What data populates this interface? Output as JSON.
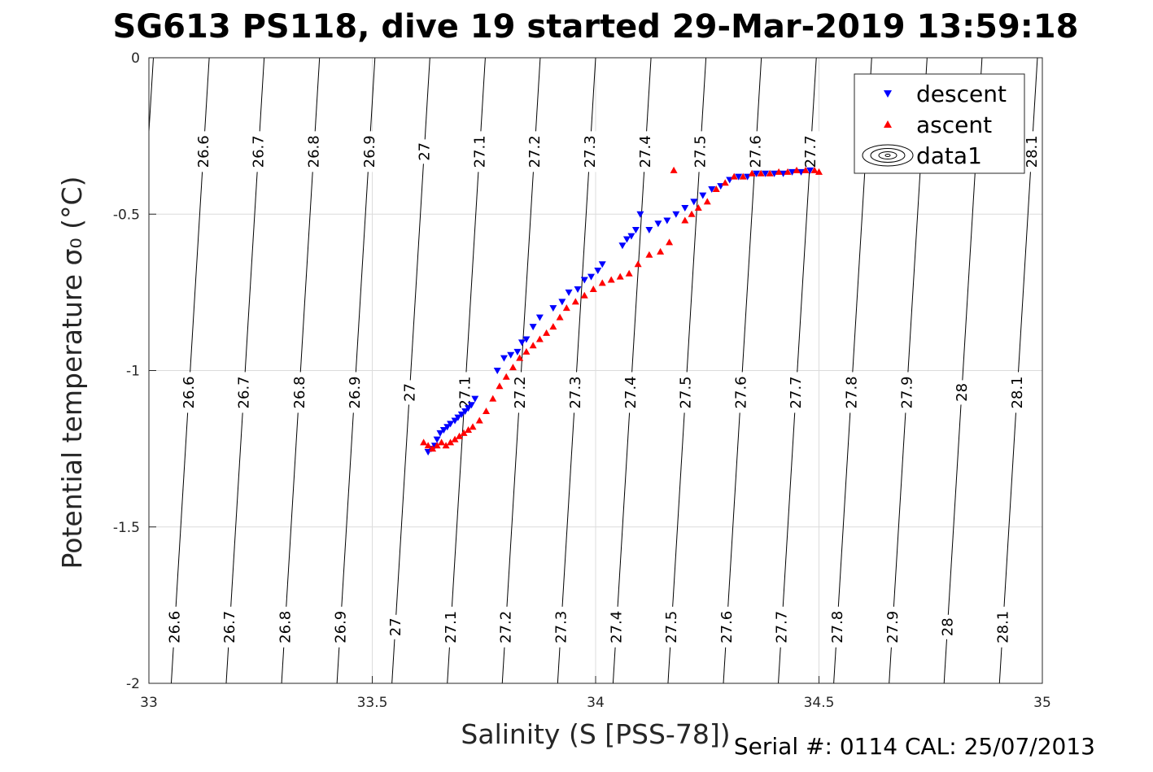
{
  "chart_data": {
    "type": "scatter",
    "title": "SG613 PS118, dive 19 started 29-Mar-2019 13:59:18",
    "xlabel": "Salinity (S [PSS-78])",
    "ylabel": "Potential temperature σ₀ (°C)",
    "xlim": [
      33,
      35
    ],
    "ylim": [
      -2,
      0
    ],
    "x_ticks": [
      "33",
      "33.5",
      "34",
      "34.5",
      "35"
    ],
    "y_ticks": [
      "0",
      "-0.5",
      "-1",
      "-1.5",
      "-2"
    ],
    "grid": true,
    "legend_position": "top-right",
    "footer": "Serial #: 0114  CAL: 25/07/2013",
    "colors": {
      "descent": "#0000ff",
      "ascent": "#ff0000",
      "contour": "#000000"
    },
    "legend": [
      {
        "label": "descent",
        "marker": "triangle-down",
        "color": "#0000ff"
      },
      {
        "label": "ascent",
        "marker": "triangle-up",
        "color": "#ff0000"
      },
      {
        "label": "data1",
        "marker": "contour-ellipse",
        "color": "#000000"
      }
    ],
    "isopycnals": [
      {
        "level": "26.6",
        "s_top": 33.135,
        "s_bottom": 33.05
      },
      {
        "level": "26.7",
        "s_top": 33.258,
        "s_bottom": 33.173
      },
      {
        "level": "26.8",
        "s_top": 33.382,
        "s_bottom": 33.297
      },
      {
        "level": "26.9",
        "s_top": 33.506,
        "s_bottom": 33.421
      },
      {
        "level": "27",
        "s_top": 33.629,
        "s_bottom": 33.544
      },
      {
        "level": "27.1",
        "s_top": 33.753,
        "s_bottom": 33.668
      },
      {
        "level": "27.2",
        "s_top": 33.876,
        "s_bottom": 33.791
      },
      {
        "level": "27.3",
        "s_top": 34.0,
        "s_bottom": 33.915
      },
      {
        "level": "27.4",
        "s_top": 34.124,
        "s_bottom": 34.039
      },
      {
        "level": "27.5",
        "s_top": 34.247,
        "s_bottom": 34.162
      },
      {
        "level": "27.6",
        "s_top": 34.371,
        "s_bottom": 34.286
      },
      {
        "level": "27.7",
        "s_top": 34.494,
        "s_bottom": 34.409
      },
      {
        "level": "27.8",
        "s_top": 34.618,
        "s_bottom": 34.533
      },
      {
        "level": "27.9",
        "s_top": 34.742,
        "s_bottom": 34.657
      },
      {
        "level": "28",
        "s_top": 34.865,
        "s_bottom": 34.78
      },
      {
        "level": "28.1",
        "s_top": 34.989,
        "s_bottom": 34.904
      },
      {
        "level": "",
        "s_top": 33.01,
        "s_bottom": 32.925
      }
    ],
    "contour_label_rows": [
      {
        "theta": -0.3,
        "levels": [
          "26.6",
          "26.7",
          "26.8",
          "26.9",
          "27",
          "27.1",
          "27.2",
          "27.3",
          "27.4",
          "27.5",
          "27.6",
          "27.7",
          "28.1"
        ]
      },
      {
        "theta": -1.07,
        "levels": [
          "26.6",
          "26.7",
          "26.8",
          "26.9",
          "27",
          "27.1",
          "27.2",
          "27.3",
          "27.4",
          "27.5",
          "27.6",
          "27.7",
          "27.8",
          "27.9",
          "28",
          "28.1"
        ]
      },
      {
        "theta": -1.82,
        "levels": [
          "26.6",
          "26.7",
          "26.8",
          "26.9",
          "27",
          "27.1",
          "27.2",
          "27.3",
          "27.4",
          "27.5",
          "27.6",
          "27.7",
          "27.8",
          "27.9",
          "28",
          "28.1"
        ]
      }
    ],
    "series": [
      {
        "name": "descent",
        "points": [
          [
            33.625,
            -1.26
          ],
          [
            33.632,
            -1.25
          ],
          [
            33.64,
            -1.24
          ],
          [
            33.645,
            -1.22
          ],
          [
            33.652,
            -1.2
          ],
          [
            33.66,
            -1.19
          ],
          [
            33.668,
            -1.18
          ],
          [
            33.675,
            -1.17
          ],
          [
            33.685,
            -1.16
          ],
          [
            33.692,
            -1.15
          ],
          [
            33.7,
            -1.14
          ],
          [
            33.708,
            -1.13
          ],
          [
            33.715,
            -1.12
          ],
          [
            33.722,
            -1.11
          ],
          [
            33.73,
            -1.09
          ],
          [
            33.78,
            -1.0
          ],
          [
            33.795,
            -0.96
          ],
          [
            33.81,
            -0.95
          ],
          [
            33.825,
            -0.94
          ],
          [
            33.835,
            -0.91
          ],
          [
            33.845,
            -0.9
          ],
          [
            33.86,
            -0.86
          ],
          [
            33.875,
            -0.83
          ],
          [
            33.905,
            -0.8
          ],
          [
            33.925,
            -0.78
          ],
          [
            33.94,
            -0.75
          ],
          [
            33.96,
            -0.74
          ],
          [
            33.975,
            -0.71
          ],
          [
            33.99,
            -0.7
          ],
          [
            34.005,
            -0.68
          ],
          [
            34.015,
            -0.66
          ],
          [
            34.06,
            -0.6
          ],
          [
            34.07,
            -0.58
          ],
          [
            34.08,
            -0.57
          ],
          [
            34.09,
            -0.55
          ],
          [
            34.1,
            -0.5
          ],
          [
            34.12,
            -0.55
          ],
          [
            34.14,
            -0.53
          ],
          [
            34.16,
            -0.52
          ],
          [
            34.18,
            -0.5
          ],
          [
            34.2,
            -0.48
          ],
          [
            34.22,
            -0.46
          ],
          [
            34.24,
            -0.44
          ],
          [
            34.26,
            -0.42
          ],
          [
            34.28,
            -0.41
          ],
          [
            34.3,
            -0.39
          ],
          [
            34.32,
            -0.38
          ],
          [
            34.34,
            -0.38
          ],
          [
            34.36,
            -0.37
          ],
          [
            34.38,
            -0.37
          ],
          [
            34.4,
            -0.37
          ],
          [
            34.42,
            -0.37
          ],
          [
            34.44,
            -0.365
          ],
          [
            34.46,
            -0.365
          ],
          [
            34.48,
            -0.36
          ]
        ]
      },
      {
        "name": "ascent",
        "points": [
          [
            33.615,
            -1.23
          ],
          [
            33.625,
            -1.24
          ],
          [
            33.635,
            -1.25
          ],
          [
            33.645,
            -1.24
          ],
          [
            33.655,
            -1.23
          ],
          [
            33.665,
            -1.24
          ],
          [
            33.675,
            -1.23
          ],
          [
            33.685,
            -1.22
          ],
          [
            33.695,
            -1.21
          ],
          [
            33.705,
            -1.2
          ],
          [
            33.715,
            -1.19
          ],
          [
            33.725,
            -1.18
          ],
          [
            33.74,
            -1.16
          ],
          [
            33.755,
            -1.13
          ],
          [
            33.77,
            -1.09
          ],
          [
            33.785,
            -1.05
          ],
          [
            33.8,
            -1.02
          ],
          [
            33.815,
            -0.99
          ],
          [
            33.83,
            -0.96
          ],
          [
            33.845,
            -0.94
          ],
          [
            33.86,
            -0.92
          ],
          [
            33.875,
            -0.9
          ],
          [
            33.89,
            -0.88
          ],
          [
            33.905,
            -0.86
          ],
          [
            33.92,
            -0.83
          ],
          [
            33.935,
            -0.8
          ],
          [
            33.955,
            -0.78
          ],
          [
            33.975,
            -0.76
          ],
          [
            33.995,
            -0.74
          ],
          [
            34.015,
            -0.72
          ],
          [
            34.035,
            -0.71
          ],
          [
            34.055,
            -0.7
          ],
          [
            34.075,
            -0.69
          ],
          [
            34.095,
            -0.66
          ],
          [
            34.12,
            -0.63
          ],
          [
            34.145,
            -0.62
          ],
          [
            34.165,
            -0.59
          ],
          [
            34.175,
            -0.36
          ],
          [
            34.2,
            -0.52
          ],
          [
            34.215,
            -0.5
          ],
          [
            34.23,
            -0.48
          ],
          [
            34.25,
            -0.46
          ],
          [
            34.27,
            -0.42
          ],
          [
            34.29,
            -0.4
          ],
          [
            34.31,
            -0.38
          ],
          [
            34.33,
            -0.38
          ],
          [
            34.35,
            -0.37
          ],
          [
            34.37,
            -0.37
          ],
          [
            34.39,
            -0.37
          ],
          [
            34.41,
            -0.365
          ],
          [
            34.43,
            -0.365
          ],
          [
            34.45,
            -0.36
          ],
          [
            34.47,
            -0.36
          ],
          [
            34.49,
            -0.36
          ],
          [
            34.5,
            -0.365
          ]
        ]
      }
    ]
  }
}
